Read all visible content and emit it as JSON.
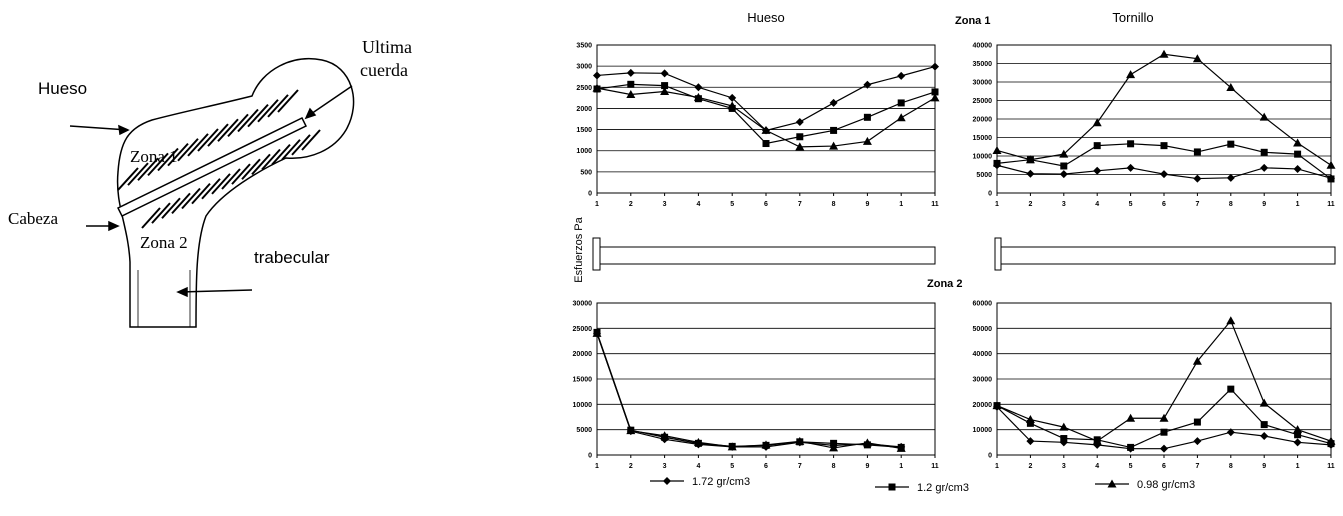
{
  "diagram": {
    "labels": [
      "Hueso",
      "Ultima",
      "cuerda",
      "Zona 1",
      "Cabeza",
      "Zona 2",
      "trabecular"
    ]
  },
  "zone_labels": [
    "Zona 1",
    "Zona 2"
  ],
  "y_label": "Esfuerzos Pa",
  "legend": [
    "1.72 gr/cm3",
    "1.2 gr/cm3",
    "0.98 gr/cm3"
  ],
  "chart_data": [
    {
      "type": "line",
      "title": "Hueso",
      "categories": [
        "1",
        "2",
        "3",
        "4",
        "5",
        "6",
        "7",
        "8",
        "9",
        "1",
        "11"
      ],
      "ylim": [
        0,
        3500
      ],
      "yticks": [
        0,
        500,
        1000,
        1500,
        2000,
        2500,
        3000,
        3500
      ],
      "grid": true,
      "series": [
        {
          "marker": "diamond",
          "color": "#000000",
          "values": [
            2780,
            2840,
            2830,
            2500,
            2250,
            1480,
            1680,
            2130,
            2560,
            2770,
            2990
          ]
        },
        {
          "marker": "square",
          "color": "#000000",
          "values": [
            2460,
            2570,
            2540,
            2230,
            2000,
            1170,
            1330,
            1480,
            1790,
            2130,
            2390
          ]
        },
        {
          "marker": "triangle",
          "color": "#000000",
          "values": [
            2480,
            2330,
            2400,
            2260,
            2060,
            1480,
            1090,
            1110,
            1220,
            1780,
            2250
          ]
        }
      ]
    },
    {
      "type": "line",
      "title": "Tornillo",
      "categories": [
        "1",
        "2",
        "3",
        "4",
        "5",
        "6",
        "7",
        "8",
        "9",
        "1",
        "11"
      ],
      "ylim": [
        0,
        40000
      ],
      "yticks": [
        0,
        5000,
        10000,
        15000,
        20000,
        25000,
        30000,
        35000,
        40000
      ],
      "grid": true,
      "series": [
        {
          "marker": "diamond",
          "color": "#000000",
          "values": [
            7500,
            5200,
            5100,
            6000,
            6800,
            5100,
            3900,
            4100,
            6800,
            6500,
            4000
          ]
        },
        {
          "marker": "square",
          "color": "#000000",
          "values": [
            8000,
            9000,
            7300,
            12800,
            13300,
            12800,
            11100,
            13200,
            11000,
            10500,
            3800
          ]
        },
        {
          "marker": "triangle",
          "color": "#000000",
          "values": [
            11500,
            9000,
            10500,
            19000,
            32000,
            37500,
            36300,
            28500,
            20500,
            13500,
            7500
          ]
        }
      ]
    },
    {
      "type": "line",
      "categories": [
        "1",
        "2",
        "3",
        "4",
        "5",
        "6",
        "7",
        "8",
        "9",
        "1",
        "11"
      ],
      "ylim": [
        0,
        30000
      ],
      "yticks": [
        0,
        5000,
        10000,
        15000,
        20000,
        25000,
        30000
      ],
      "grid": true,
      "series": [
        {
          "marker": "diamond",
          "color": "#000000",
          "values": [
            24000,
            4700,
            3100,
            2100,
            1600,
            1600,
            2500,
            1900,
            2200,
            1600,
            null
          ]
        },
        {
          "marker": "square",
          "color": "#000000",
          "values": [
            24200,
            4900,
            3500,
            2300,
            1700,
            1900,
            2600,
            2300,
            2000,
            1500,
            null
          ]
        },
        {
          "marker": "triangle",
          "color": "#000000",
          "values": [
            24000,
            4800,
            3800,
            2500,
            1600,
            2000,
            2700,
            1400,
            2400,
            1300,
            null
          ]
        }
      ]
    },
    {
      "type": "line",
      "categories": [
        "1",
        "2",
        "3",
        "4",
        "5",
        "6",
        "7",
        "8",
        "9",
        "1",
        "11"
      ],
      "ylim": [
        0,
        60000
      ],
      "yticks": [
        0,
        10000,
        20000,
        30000,
        40000,
        50000,
        60000
      ],
      "grid": true,
      "series": [
        {
          "marker": "diamond",
          "color": "#000000",
          "values": [
            19000,
            5500,
            5000,
            4000,
            2500,
            2500,
            5500,
            9000,
            7500,
            5000,
            4000
          ]
        },
        {
          "marker": "square",
          "color": "#000000",
          "values": [
            19500,
            12500,
            6500,
            6000,
            3000,
            9000,
            13000,
            26000,
            12000,
            8000,
            4500
          ]
        },
        {
          "marker": "triangle",
          "color": "#000000",
          "values": [
            19500,
            14000,
            11000,
            5500,
            14500,
            14500,
            37000,
            53000,
            20500,
            10000,
            5500
          ]
        }
      ]
    }
  ]
}
